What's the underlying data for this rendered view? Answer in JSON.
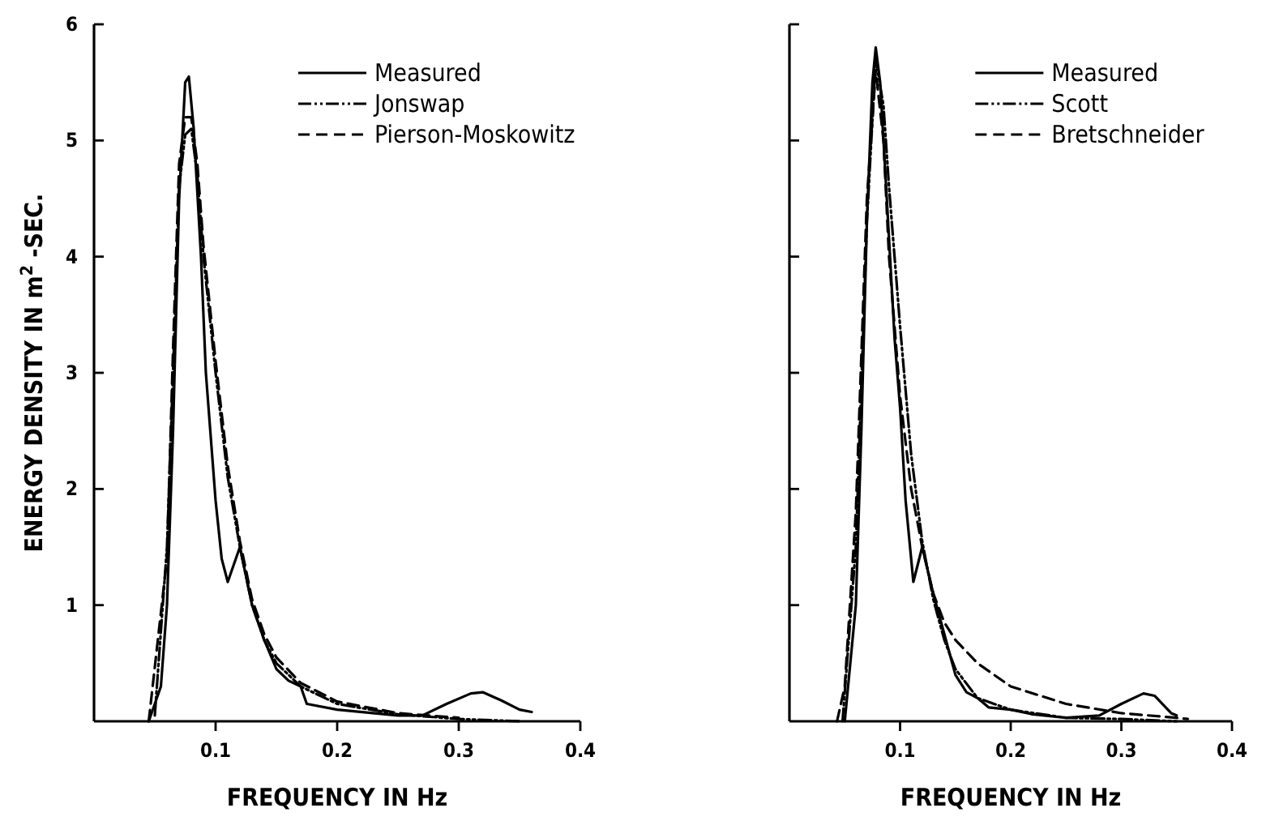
{
  "chart_data": [
    {
      "type": "line",
      "xlabel": "FREQUENCY IN Hz",
      "ylabel": "ENERGY DENSITY IN m$^{2}$ -SEC.",
      "xlim": [
        0,
        0.4
      ],
      "xticks": [
        0.1,
        0.2,
        0.3,
        0.4
      ],
      "ylim": [
        0,
        6
      ],
      "yticks": [
        1,
        2,
        3,
        4,
        5,
        6
      ],
      "legend": "top right",
      "series": [
        {
          "name": "Measured",
          "color": "#000000",
          "line_style": "solid",
          "x": [
            0.045,
            0.055,
            0.06,
            0.065,
            0.07,
            0.075,
            0.078,
            0.082,
            0.088,
            0.092,
            0.1,
            0.105,
            0.11,
            0.115,
            0.12,
            0.13,
            0.14,
            0.15,
            0.16,
            0.17,
            0.175,
            0.2,
            0.25,
            0.27,
            0.29,
            0.31,
            0.32,
            0.335,
            0.35,
            0.36
          ],
          "values": [
            0,
            0.3,
            1.0,
            2.5,
            4.5,
            5.5,
            5.55,
            5.1,
            4.0,
            3.0,
            1.9,
            1.4,
            1.2,
            1.35,
            1.5,
            1.0,
            0.7,
            0.45,
            0.35,
            0.3,
            0.15,
            0.1,
            0.05,
            0.05,
            0.15,
            0.24,
            0.25,
            0.18,
            0.1,
            0.08
          ]
        },
        {
          "name": "Jonswap",
          "color": "#000000",
          "line_style": "dotted",
          "x": [
            0.05,
            0.06,
            0.065,
            0.07,
            0.075,
            0.08,
            0.085,
            0.09,
            0.1,
            0.11,
            0.12,
            0.13,
            0.14,
            0.15,
            0.17,
            0.2,
            0.25,
            0.3,
            0.35
          ],
          "values": [
            0.05,
            1.5,
            3.0,
            4.6,
            5.05,
            5.1,
            4.7,
            4.0,
            3.0,
            2.1,
            1.5,
            1.0,
            0.7,
            0.5,
            0.3,
            0.15,
            0.06,
            0.02,
            0
          ]
        },
        {
          "name": "Pierson-Moskowitz",
          "color": "#000000",
          "line_style": "dashed",
          "x": [
            0.045,
            0.06,
            0.065,
            0.07,
            0.075,
            0.08,
            0.085,
            0.09,
            0.1,
            0.11,
            0.12,
            0.13,
            0.14,
            0.15,
            0.17,
            0.2,
            0.25,
            0.3
          ],
          "values": [
            0,
            1.4,
            3.2,
            4.8,
            5.2,
            5.2,
            4.8,
            4.1,
            3.1,
            2.2,
            1.55,
            1.05,
            0.75,
            0.55,
            0.33,
            0.17,
            0.07,
            0.03
          ]
        }
      ]
    },
    {
      "type": "line",
      "xlabel": "FREQUENCY IN Hz",
      "xlim": [
        0,
        0.4
      ],
      "xticks": [
        0.1,
        0.2,
        0.3,
        0.4
      ],
      "ylim": [
        0,
        6
      ],
      "yticks": [
        {
          "value": 1,
          "label": null
        },
        {
          "value": 2,
          "label": null
        },
        {
          "value": 3,
          "label": null
        },
        {
          "value": 4,
          "label": null
        },
        {
          "value": 5,
          "label": null
        },
        {
          "value": 6,
          "label": null
        }
      ],
      "tick_labels": "x",
      "legend": "top right",
      "series": [
        {
          "name": "Measured",
          "color": "#000000",
          "line_style": "solid",
          "x": [
            0.05,
            0.06,
            0.065,
            0.07,
            0.075,
            0.078,
            0.082,
            0.088,
            0.095,
            0.1,
            0.105,
            0.112,
            0.12,
            0.13,
            0.14,
            0.15,
            0.16,
            0.17,
            0.18,
            0.2,
            0.22,
            0.25,
            0.28,
            0.3,
            0.32,
            0.33,
            0.345,
            0.35
          ],
          "values": [
            0,
            1.0,
            2.5,
            4.3,
            5.5,
            5.8,
            5.5,
            4.5,
            3.3,
            2.7,
            1.9,
            1.2,
            1.5,
            1.1,
            0.75,
            0.4,
            0.25,
            0.2,
            0.12,
            0.1,
            0.06,
            0.03,
            0.05,
            0.15,
            0.24,
            0.22,
            0.07,
            0.05
          ]
        },
        {
          "name": "Scott",
          "color": "#000000",
          "line_style": "dotted",
          "x": [
            0.048,
            0.06,
            0.07,
            0.078,
            0.085,
            0.09,
            0.1,
            0.11,
            0.12,
            0.13,
            0.14,
            0.15,
            0.17,
            0.2,
            0.25,
            0.3,
            0.35
          ],
          "values": [
            0,
            1.5,
            4.3,
            5.7,
            5.3,
            4.6,
            3.4,
            2.3,
            1.55,
            1.05,
            0.7,
            0.45,
            0.2,
            0.1,
            0.03,
            0.02,
            0
          ]
        },
        {
          "name": "Bretschneider",
          "color": "#000000",
          "line_style": "dashed",
          "x": [
            0.043,
            0.05,
            0.06,
            0.07,
            0.078,
            0.085,
            0.09,
            0.1,
            0.11,
            0.12,
            0.13,
            0.14,
            0.15,
            0.17,
            0.2,
            0.25,
            0.3,
            0.35,
            0.36
          ],
          "values": [
            0,
            0.3,
            1.8,
            4.5,
            5.6,
            5.0,
            4.0,
            2.8,
            2.0,
            1.5,
            1.1,
            0.85,
            0.7,
            0.5,
            0.3,
            0.15,
            0.07,
            0.03,
            0.02
          ]
        }
      ]
    }
  ]
}
